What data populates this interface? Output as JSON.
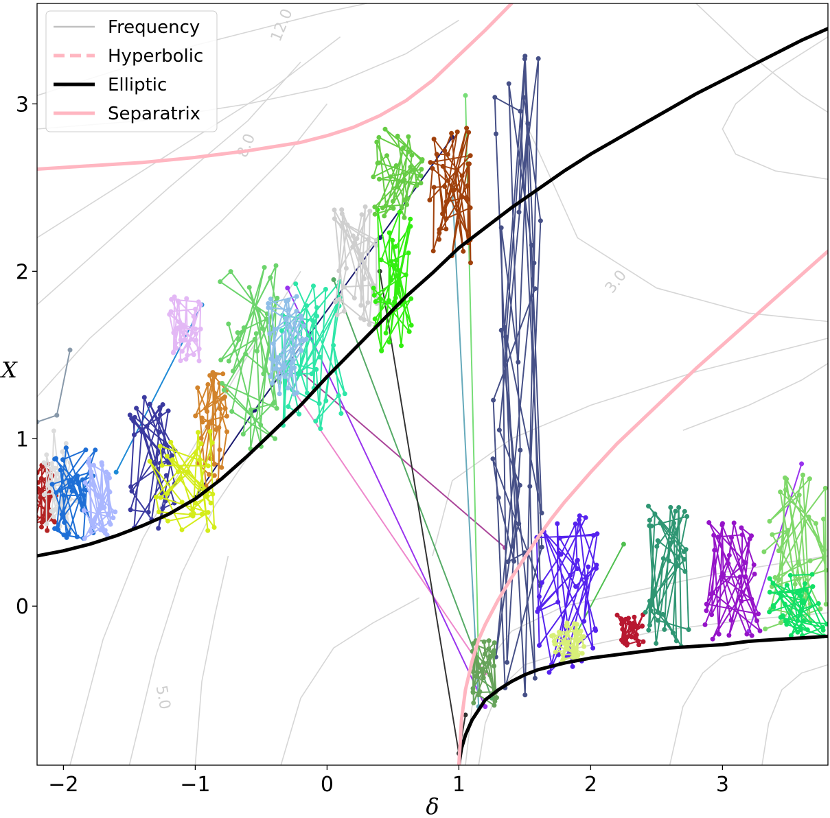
{
  "chart_data": {
    "type": "line",
    "title": "",
    "xlabel": "δ",
    "ylabel": "X",
    "xlim": [
      -2.2,
      3.8
    ],
    "ylim": [
      -0.95,
      3.6
    ],
    "xticks": [
      -2,
      -1,
      0,
      1,
      2,
      3
    ],
    "xtick_labels": [
      "−2",
      "−1",
      "0",
      "1",
      "2",
      "3"
    ],
    "yticks": [
      0,
      1,
      2,
      3
    ],
    "ytick_labels": [
      "0",
      "1",
      "2",
      "3"
    ],
    "grid": false,
    "legend_position": "upper-left",
    "legend": [
      {
        "label": "Frequency",
        "color": "#c0c0c0",
        "style": "solid"
      },
      {
        "label": "Hyperbolic",
        "color": "#ffb6c1",
        "style": "dashed"
      },
      {
        "label": "Elliptic",
        "color": "#000000",
        "style": "solid"
      },
      {
        "label": "Separatrix",
        "color": "#ffb6c1",
        "style": "solid"
      }
    ],
    "contour_labels": [
      {
        "text": "12.0",
        "x": -0.31,
        "y": 3.46,
        "angle": -68
      },
      {
        "text": "8.0",
        "x": -0.58,
        "y": 2.74,
        "angle": -68
      },
      {
        "text": "3.0",
        "x": 2.22,
        "y": 1.92,
        "angle": -52
      },
      {
        "text": "5.0",
        "x": -1.28,
        "y": -0.55,
        "angle": 80
      }
    ],
    "series": [
      {
        "name": "Elliptic",
        "color": "#000000",
        "x": [
          -2.2,
          -2.0,
          -1.8,
          -1.6,
          -1.4,
          -1.2,
          -1.0,
          -0.8,
          -0.6,
          -0.4,
          -0.2,
          0.0,
          0.2,
          0.4,
          0.6,
          0.8,
          1.0,
          1.2,
          1.4,
          1.6,
          1.8,
          2.0,
          2.2,
          2.4,
          2.6,
          2.8,
          3.0,
          3.2,
          3.4,
          3.6,
          3.8
        ],
        "y": [
          0.3,
          0.33,
          0.37,
          0.42,
          0.48,
          0.55,
          0.64,
          0.76,
          0.9,
          1.05,
          1.2,
          1.37,
          1.53,
          1.69,
          1.85,
          1.99,
          2.14,
          2.26,
          2.38,
          2.49,
          2.6,
          2.7,
          2.79,
          2.88,
          2.97,
          3.06,
          3.14,
          3.22,
          3.3,
          3.38,
          3.45
        ]
      },
      {
        "name": "Elliptic",
        "color": "#000000",
        "x": [
          1.0,
          1.02,
          1.05,
          1.1,
          1.15,
          1.2,
          1.3,
          1.4,
          1.5,
          1.6,
          1.8,
          2.0,
          2.2,
          2.4,
          2.6,
          2.8,
          3.0,
          3.2,
          3.4,
          3.6,
          3.8
        ],
        "y": [
          -0.95,
          -0.85,
          -0.77,
          -0.68,
          -0.62,
          -0.56,
          -0.5,
          -0.45,
          -0.41,
          -0.38,
          -0.34,
          -0.31,
          -0.29,
          -0.27,
          -0.25,
          -0.24,
          -0.23,
          -0.21,
          -0.2,
          -0.19,
          -0.18
        ]
      },
      {
        "name": "Separatrix",
        "color": "#ffb6c1",
        "x": [
          -2.2,
          -1.8,
          -1.4,
          -1.0,
          -0.6,
          -0.2,
          0.0,
          0.2,
          0.4,
          0.6,
          0.8,
          1.0,
          1.2,
          1.4
        ],
        "y": [
          2.61,
          2.63,
          2.65,
          2.68,
          2.72,
          2.77,
          2.81,
          2.86,
          2.93,
          3.02,
          3.14,
          3.29,
          3.44,
          3.6
        ]
      },
      {
        "name": "Separatrix",
        "color": "#ffb6c1",
        "x": [
          1.0,
          1.02,
          1.05,
          1.1,
          1.15,
          1.2,
          1.3,
          1.4,
          1.5,
          1.6,
          1.7,
          1.8,
          2.0,
          2.2,
          2.4,
          2.6,
          2.8,
          3.0,
          3.2,
          3.4,
          3.6,
          3.8
        ],
        "y": [
          -0.95,
          -0.68,
          -0.5,
          -0.33,
          -0.2,
          -0.11,
          0.04,
          0.17,
          0.29,
          0.41,
          0.52,
          0.62,
          0.8,
          0.97,
          1.12,
          1.27,
          1.42,
          1.56,
          1.7,
          1.84,
          1.98,
          2.12
        ]
      }
    ],
    "frequency_contours": [
      {
        "x": [
          -2.2,
          -1.6,
          -1.0,
          -0.5,
          0.0,
          0.3
        ],
        "y": [
          3.05,
          3.2,
          3.35,
          3.45,
          3.55,
          3.6
        ]
      },
      {
        "x": [
          -2.2,
          -1.4,
          -0.6,
          0.0,
          0.6,
          1.0
        ],
        "y": [
          2.85,
          2.9,
          3.0,
          3.1,
          3.3,
          3.5
        ]
      },
      {
        "x": [
          -2.2,
          -1.6,
          -1.0,
          -0.4,
          0.1
        ],
        "y": [
          2.2,
          2.5,
          2.8,
          3.1,
          3.4
        ]
      },
      {
        "x": [
          -2.2,
          -1.7,
          -1.2,
          -0.6,
          -0.2
        ],
        "y": [
          1.8,
          2.15,
          2.5,
          2.9,
          3.25
        ]
      },
      {
        "x": [
          -2.2,
          -1.8,
          -1.3,
          -0.8,
          -0.3,
          0.0
        ],
        "y": [
          1.25,
          1.6,
          1.95,
          2.3,
          2.7,
          3.0
        ]
      },
      {
        "x": [
          -1.95,
          -1.7,
          -1.4,
          -1.05,
          -0.6,
          -0.2
        ],
        "y": [
          -0.95,
          -0.2,
          0.4,
          0.9,
          1.5,
          2.0
        ]
      },
      {
        "x": [
          -1.5,
          -1.3,
          -1.1,
          -0.85,
          -0.55
        ],
        "y": [
          -0.95,
          -0.3,
          0.2,
          0.6,
          0.95
        ]
      },
      {
        "x": [
          -1.0,
          -0.95,
          -0.85,
          -0.75
        ],
        "y": [
          -0.95,
          -0.45,
          -0.05,
          0.3
        ]
      },
      {
        "x": [
          -0.35,
          -0.2,
          0.05,
          0.35,
          0.7
        ],
        "y": [
          -0.95,
          -0.55,
          -0.25,
          -0.1,
          0.05
        ]
      },
      {
        "x": [
          0.8,
          0.95,
          1.4,
          2.0,
          2.8,
          3.8
        ],
        "y": [
          0.3,
          0.75,
          1.0,
          1.2,
          1.4,
          1.6
        ]
      },
      {
        "x": [
          1.5,
          1.9,
          2.5,
          3.2,
          3.8
        ],
        "y": [
          2.9,
          2.2,
          1.9,
          1.75,
          1.7
        ]
      },
      {
        "x": [
          3.8,
          3.4,
          3.1,
          3.0,
          3.1,
          3.4,
          3.8
        ],
        "y": [
          3.4,
          3.2,
          3.0,
          2.85,
          2.7,
          2.6,
          2.55
        ]
      },
      {
        "x": [
          2.8,
          3.2,
          3.6,
          3.8
        ],
        "y": [
          3.6,
          3.3,
          3.05,
          2.95
        ]
      },
      {
        "x": [
          2.7,
          3.2,
          3.6,
          3.8
        ],
        "y": [
          1.05,
          1.2,
          1.35,
          1.45
        ]
      },
      {
        "x": [
          1.05,
          1.1,
          1.2,
          1.4,
          1.8,
          2.4,
          3.0,
          3.8
        ],
        "y": [
          -0.95,
          -0.6,
          -0.35,
          -0.15,
          0.0,
          0.1,
          0.2,
          0.3
        ]
      },
      {
        "x": [
          1.15,
          1.2,
          1.3,
          1.5,
          1.9,
          2.5,
          3.2,
          3.8
        ],
        "y": [
          -0.95,
          -0.7,
          -0.5,
          -0.35,
          -0.25,
          -0.15,
          -0.08,
          -0.04
        ]
      },
      {
        "x": [
          2.6,
          2.7,
          2.85,
          3.0,
          3.2
        ],
        "y": [
          -0.95,
          -0.6,
          -0.4,
          -0.3,
          -0.25
        ]
      },
      {
        "x": [
          3.3,
          3.35,
          3.45,
          3.6,
          3.8
        ],
        "y": [
          -0.95,
          -0.7,
          -0.5,
          -0.4,
          -0.35
        ]
      }
    ],
    "trajectory_clusters": [
      {
        "color": "#b22222",
        "x": [
          -2.25,
          -2.05
        ],
        "y": [
          0.45,
          0.85
        ]
      },
      {
        "color": "#dcdcdc",
        "x": [
          -2.15,
          -1.9
        ],
        "y": [
          0.45,
          1.05
        ]
      },
      {
        "color": "#1e6fd6",
        "x": [
          -2.1,
          -1.75
        ],
        "y": [
          0.4,
          0.95
        ]
      },
      {
        "color": "#aab7ff",
        "x": [
          -1.85,
          -1.6
        ],
        "y": [
          0.4,
          0.9
        ]
      },
      {
        "color": "#3b3aa0",
        "x": [
          -1.5,
          -1.15
        ],
        "y": [
          0.45,
          1.25
        ]
      },
      {
        "color": "#e3b8f5",
        "x": [
          -1.2,
          -0.95
        ],
        "y": [
          1.45,
          1.85
        ]
      },
      {
        "color": "#d2832b",
        "x": [
          -1.0,
          -0.75
        ],
        "y": [
          0.7,
          1.4
        ]
      },
      {
        "color": "#d4ec1a",
        "x": [
          -1.35,
          -0.85
        ],
        "y": [
          0.45,
          1.05
        ]
      },
      {
        "color": "#6cd46c",
        "x": [
          -0.85,
          -0.35
        ],
        "y": [
          0.9,
          2.1
        ]
      },
      {
        "color": "#2ee6a8",
        "x": [
          -0.35,
          0.15
        ],
        "y": [
          1.0,
          1.95
        ]
      },
      {
        "color": "#8fbfe8",
        "x": [
          -0.45,
          -0.15
        ],
        "y": [
          1.2,
          1.85
        ]
      },
      {
        "color": "#cfcfcf",
        "x": [
          0.05,
          0.4
        ],
        "y": [
          1.65,
          2.4
        ]
      },
      {
        "color": "#33ee11",
        "x": [
          0.35,
          0.65
        ],
        "y": [
          1.5,
          2.4
        ]
      },
      {
        "color": "#66cc44",
        "x": [
          0.35,
          0.75
        ],
        "y": [
          2.3,
          2.85
        ]
      },
      {
        "color": "#a0410c",
        "x": [
          0.75,
          1.1
        ],
        "y": [
          2.0,
          2.9
        ]
      },
      {
        "color": "#465087",
        "x": [
          1.25,
          1.65
        ],
        "y": [
          -0.65,
          3.3
        ]
      },
      {
        "color": "#66a35a",
        "x": [
          1.1,
          1.3
        ],
        "y": [
          -0.6,
          -0.2
        ]
      },
      {
        "color": "#5522ee",
        "x": [
          1.55,
          2.05
        ],
        "y": [
          -0.4,
          0.6
        ]
      },
      {
        "color": "#d8ef78",
        "x": [
          1.7,
          1.95
        ],
        "y": [
          -0.35,
          -0.1
        ]
      },
      {
        "color": "#b81830",
        "x": [
          2.2,
          2.4
        ],
        "y": [
          -0.25,
          -0.05
        ]
      },
      {
        "color": "#2f9673",
        "x": [
          2.4,
          2.75
        ],
        "y": [
          -0.25,
          0.6
        ]
      },
      {
        "color": "#9514c8",
        "x": [
          2.85,
          3.3
        ],
        "y": [
          -0.2,
          0.5
        ]
      },
      {
        "color": "#7fd86a",
        "x": [
          3.3,
          3.8
        ],
        "y": [
          -0.15,
          0.8
        ]
      },
      {
        "color": "#11e066",
        "x": [
          3.35,
          3.8
        ],
        "y": [
          -0.2,
          0.2
        ]
      }
    ],
    "transition_lines": [
      {
        "color": "#8899aa",
        "x": [
          -2.2,
          -2.05,
          -1.95
        ],
        "y": [
          1.1,
          1.14,
          1.53
        ]
      },
      {
        "color": "#1e8ad6",
        "x": [
          -1.6,
          -0.95
        ],
        "y": [
          0.8,
          1.8
        ]
      },
      {
        "color": "#1a1a70",
        "x": [
          -1.0,
          -0.55,
          0.4,
          0.95
        ],
        "y": [
          0.65,
          1.17,
          2.2,
          2.8
        ]
      },
      {
        "color": "#ee88cc",
        "x": [
          -0.35,
          1.2
        ],
        "y": [
          1.4,
          -0.4
        ]
      },
      {
        "color": "#aa4499",
        "x": [
          -0.2,
          1.35
        ],
        "y": [
          1.4,
          0.35
        ]
      },
      {
        "color": "#9933ee",
        "x": [
          -0.3,
          1.2
        ],
        "y": [
          1.9,
          -0.6
        ]
      },
      {
        "color": "#55aa66",
        "x": [
          0.05,
          1.25
        ],
        "y": [
          1.95,
          -0.55
        ]
      },
      {
        "color": "#333333",
        "x": [
          0.4,
          1.0,
          1.05
        ],
        "y": [
          2.0,
          -0.88,
          -0.65
        ]
      },
      {
        "color": "#66aabb",
        "x": [
          0.95,
          1.15
        ],
        "y": [
          2.5,
          -0.6
        ]
      },
      {
        "color": "#77dd77",
        "x": [
          1.05,
          1.15
        ],
        "y": [
          3.05,
          -0.35
        ]
      },
      {
        "color": "#4fbf4f",
        "x": [
          1.9,
          2.25
        ],
        "y": [
          -0.15,
          0.37
        ]
      },
      {
        "color": "#9933ee",
        "x": [
          3.2,
          3.6
        ],
        "y": [
          -0.15,
          0.85
        ]
      }
    ]
  }
}
